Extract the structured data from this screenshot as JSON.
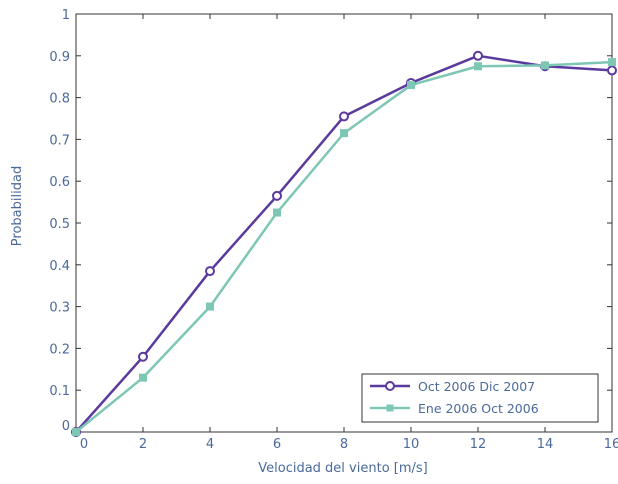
{
  "chart_data": {
    "type": "line",
    "title": "",
    "xlabel": "Velocidad del viento [m/s]",
    "ylabel": "Probabilidad",
    "xlim": [
      0,
      16
    ],
    "ylim": [
      0,
      1
    ],
    "xticks": [
      0,
      2,
      4,
      6,
      8,
      10,
      12,
      14,
      16
    ],
    "xtick_labels": [
      "0",
      "2",
      "4",
      "6",
      "8",
      "10",
      "12",
      "14",
      "16"
    ],
    "yticks": [
      0,
      0.1,
      0.2,
      0.3,
      0.4,
      0.5,
      0.6,
      0.7,
      0.8,
      0.9,
      1
    ],
    "ytick_labels": [
      "0",
      "0.1",
      "0.2",
      "0.3",
      "0.4",
      "0.5",
      "0.6",
      "0.7",
      "0.8",
      "0.9",
      "1"
    ],
    "grid": false,
    "legend_position": "bottom-right",
    "x": [
      0,
      2,
      4,
      6,
      8,
      10,
      12,
      14,
      16
    ],
    "series": [
      {
        "name": "Oct 2006  Dic 2007",
        "marker": "circle",
        "color": "#5b3a9e",
        "values": [
          0.0,
          0.18,
          0.385,
          0.565,
          0.755,
          0.835,
          0.9,
          0.875,
          0.865
        ]
      },
      {
        "name": "Ene 2006  Oct 2006",
        "marker": "square",
        "color": "#7ec7b4",
        "values": [
          0.0,
          0.13,
          0.3,
          0.525,
          0.715,
          0.83,
          0.875,
          0.877,
          0.885
        ]
      }
    ]
  }
}
